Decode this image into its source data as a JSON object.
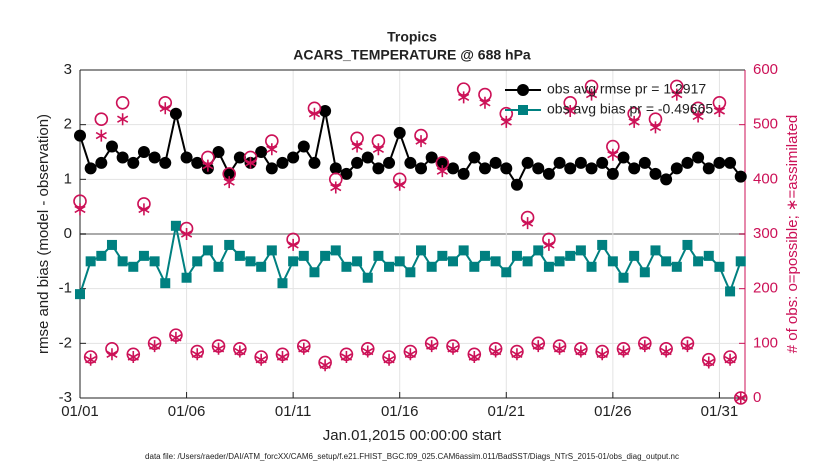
{
  "chart_data": {
    "type": "line",
    "title": "Tropics",
    "subtitle": "ACARS_TEMPERATURE @ 688 hPa",
    "x_label": "Jan.01,2015 00:00:00 start",
    "y_label": "rmse and bias (model - observation)",
    "y2_label": "# of obs: o=possible; ∗=assimilated",
    "footnote": "data file: /Users/raeder/DAI/ATM_forcXX/CAM6_setup/f.e21.FHIST_BGC.f09_025.CAM6assim.011/BadSST/Diags_NTrS_2015-01/obs_diag_output.nc",
    "x": [
      0,
      0.5,
      1,
      1.5,
      2,
      2.5,
      3,
      3.5,
      4,
      4.5,
      5,
      5.5,
      6,
      6.5,
      7,
      7.5,
      8,
      8.5,
      9,
      9.5,
      10,
      10.5,
      11,
      11.5,
      12,
      12.5,
      13,
      13.5,
      14,
      14.5,
      15,
      15.5,
      16,
      16.5,
      17,
      17.5,
      18,
      18.5,
      19,
      19.5,
      20,
      20.5,
      21,
      21.5,
      22,
      22.5,
      23,
      23.5,
      24,
      24.5,
      25,
      25.5,
      26,
      26.5,
      27,
      27.5,
      28,
      28.5,
      29,
      29.5,
      30,
      30.5,
      31
    ],
    "xlim": [
      0,
      31.2
    ],
    "xticks": [
      {
        "value": 0,
        "label": "01/01"
      },
      {
        "value": 5,
        "label": "01/06"
      },
      {
        "value": 10,
        "label": "01/11"
      },
      {
        "value": 15,
        "label": "01/16"
      },
      {
        "value": 20,
        "label": "01/21"
      },
      {
        "value": 25,
        "label": "01/26"
      },
      {
        "value": 30,
        "label": "01/31"
      }
    ],
    "ylim": [
      -3,
      3
    ],
    "yticks": [
      -3,
      -2,
      -1,
      0,
      1,
      2,
      3
    ],
    "y2lim": [
      0,
      600
    ],
    "y2ticks": [
      0,
      100,
      200,
      300,
      400,
      500,
      600
    ],
    "grid": true,
    "legend": "top-right",
    "series": [
      {
        "name": "obs avg rmse pr = 1.2917",
        "color": "#000000",
        "marker": "circle",
        "line": true,
        "values": [
          1.8,
          1.2,
          1.3,
          1.6,
          1.4,
          1.3,
          1.5,
          1.4,
          1.3,
          2.2,
          1.4,
          1.3,
          1.2,
          1.5,
          1.1,
          1.4,
          1.3,
          1.5,
          1.2,
          1.3,
          1.4,
          1.6,
          1.3,
          2.25,
          1.2,
          1.1,
          1.3,
          1.4,
          1.2,
          1.3,
          1.85,
          1.3,
          1.2,
          1.4,
          1.3,
          1.2,
          1.1,
          1.4,
          1.2,
          1.3,
          1.2,
          0.9,
          1.3,
          1.2,
          1.1,
          1.3,
          1.2,
          1.3,
          1.2,
          1.3,
          1.1,
          1.4,
          1.2,
          1.3,
          1.1,
          1.0,
          1.2,
          1.3,
          1.4,
          1.2,
          1.3,
          1.3,
          1.05
        ]
      },
      {
        "name": "obs avg bias pr = -0.49665",
        "color": "#008080",
        "marker": "square",
        "line": true,
        "values": [
          -1.1,
          -0.5,
          -0.4,
          -0.2,
          -0.5,
          -0.6,
          -0.4,
          -0.5,
          -0.9,
          0.15,
          -0.8,
          -0.5,
          -0.3,
          -0.6,
          -0.2,
          -0.4,
          -0.5,
          -0.6,
          -0.3,
          -0.9,
          -0.5,
          -0.4,
          -0.7,
          -0.4,
          -0.3,
          -0.6,
          -0.5,
          -0.8,
          -0.4,
          -0.6,
          -0.5,
          -0.7,
          -0.3,
          -0.6,
          -0.4,
          -0.5,
          -0.3,
          -0.6,
          -0.4,
          -0.5,
          -0.7,
          -0.4,
          -0.5,
          -0.3,
          -0.6,
          -0.5,
          -0.4,
          -0.3,
          -0.6,
          -0.2,
          -0.5,
          -0.8,
          -0.4,
          -0.7,
          -0.3,
          -0.5,
          -0.6,
          -0.2,
          -0.5,
          -0.4,
          -0.6,
          -1.05,
          -0.5
        ]
      },
      {
        "color": "#cc1157",
        "marker": "open-circle",
        "line": false,
        "axis": "y2",
        "values": [
          360,
          75,
          510,
          90,
          540,
          80,
          355,
          100,
          540,
          115,
          310,
          85,
          440,
          95,
          410,
          90,
          440,
          75,
          470,
          80,
          290,
          95,
          530,
          65,
          400,
          80,
          475,
          90,
          470,
          75,
          400,
          85,
          480,
          100,
          430,
          95,
          565,
          80,
          555,
          90,
          520,
          85,
          330,
          100,
          290,
          95,
          540,
          90,
          570,
          85,
          460,
          90,
          520,
          100,
          510,
          90,
          570,
          100,
          530,
          70,
          540,
          75,
          0
        ]
      },
      {
        "color": "#cc1157",
        "marker": "asterisk",
        "line": false,
        "axis": "y2",
        "values": [
          345,
          70,
          480,
          80,
          510,
          75,
          345,
          95,
          530,
          110,
          300,
          80,
          425,
          90,
          395,
          85,
          430,
          70,
          455,
          75,
          280,
          90,
          520,
          60,
          385,
          75,
          460,
          85,
          455,
          70,
          390,
          80,
          470,
          95,
          415,
          90,
          550,
          75,
          540,
          85,
          505,
          80,
          320,
          95,
          280,
          90,
          525,
          85,
          555,
          80,
          445,
          85,
          505,
          95,
          495,
          85,
          555,
          95,
          515,
          65,
          525,
          70,
          0
        ]
      }
    ]
  }
}
